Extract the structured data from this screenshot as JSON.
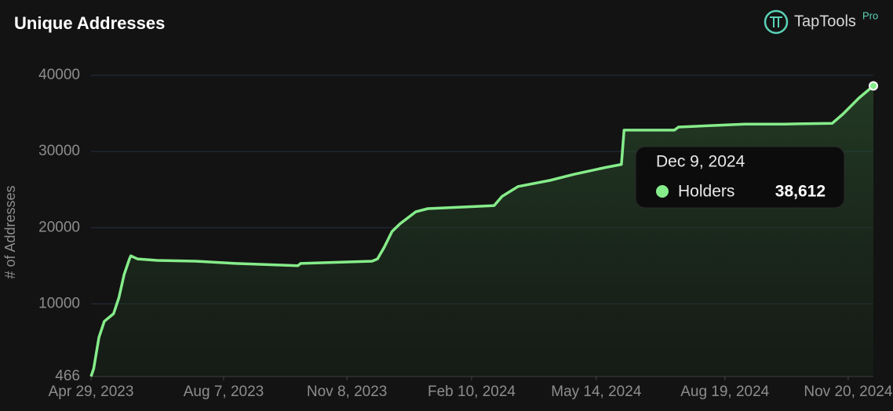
{
  "chart_data": {
    "type": "line",
    "title": "Unique Addresses",
    "brand": "TapTools",
    "brand_badge": "Pro",
    "y_label": "# of Addresses",
    "x": [
      "2023-04-29",
      "2023-05-01",
      "2023-05-05",
      "2023-05-09",
      "2023-05-16",
      "2023-05-20",
      "2023-05-24",
      "2023-05-28",
      "2023-05-29",
      "2023-06-03",
      "2023-06-18",
      "2023-07-17",
      "2023-08-16",
      "2023-10-02",
      "2023-10-04",
      "2023-11-27",
      "2023-12-01",
      "2023-12-06",
      "2023-12-12",
      "2023-12-18",
      "2023-12-30",
      "2024-01-08",
      "2024-02-03",
      "2024-02-27",
      "2024-03-04",
      "2024-03-16",
      "2024-04-09",
      "2024-04-27",
      "2024-05-21",
      "2024-06-02",
      "2024-06-04",
      "2024-07-12",
      "2024-07-15",
      "2024-09-03",
      "2024-10-03",
      "2024-11-08",
      "2024-11-16",
      "2024-11-28",
      "2024-12-09"
    ],
    "series": [
      {
        "name": "Holders",
        "color": "#86ec8a",
        "values": [
          466,
          1500,
          5600,
          7700,
          8700,
          10800,
          13850,
          15900,
          16300,
          15900,
          15700,
          15600,
          15300,
          15000,
          15300,
          15600,
          15900,
          17400,
          19500,
          20500,
          22100,
          22500,
          22700,
          22900,
          24100,
          25400,
          26200,
          27000,
          27900,
          28300,
          32800,
          32800,
          33200,
          33600,
          33600,
          33700,
          34900,
          37000,
          38612
        ]
      }
    ],
    "xlim": [
      "2023-04-29",
      "2024-12-09"
    ],
    "xticks": [
      {
        "value": "2023-04-29",
        "label": "Apr 29, 2023"
      },
      {
        "value": "2023-08-07",
        "label": "Aug 7, 2023"
      },
      {
        "value": "2023-11-08",
        "label": "Nov 8, 2023"
      },
      {
        "value": "2024-02-10",
        "label": "Feb 10, 2024"
      },
      {
        "value": "2024-05-14",
        "label": "May 14, 2024"
      },
      {
        "value": "2024-08-19",
        "label": "Aug 19, 2024"
      },
      {
        "value": "2024-11-20",
        "label": "Nov 20, 2024"
      }
    ],
    "ylim": [
      466,
      40000
    ],
    "yticks": [
      466,
      10000,
      20000,
      30000,
      40000
    ],
    "grid": true,
    "tooltip": {
      "x": "Dec 9, 2024",
      "value": 38612,
      "label": "38,612"
    }
  }
}
